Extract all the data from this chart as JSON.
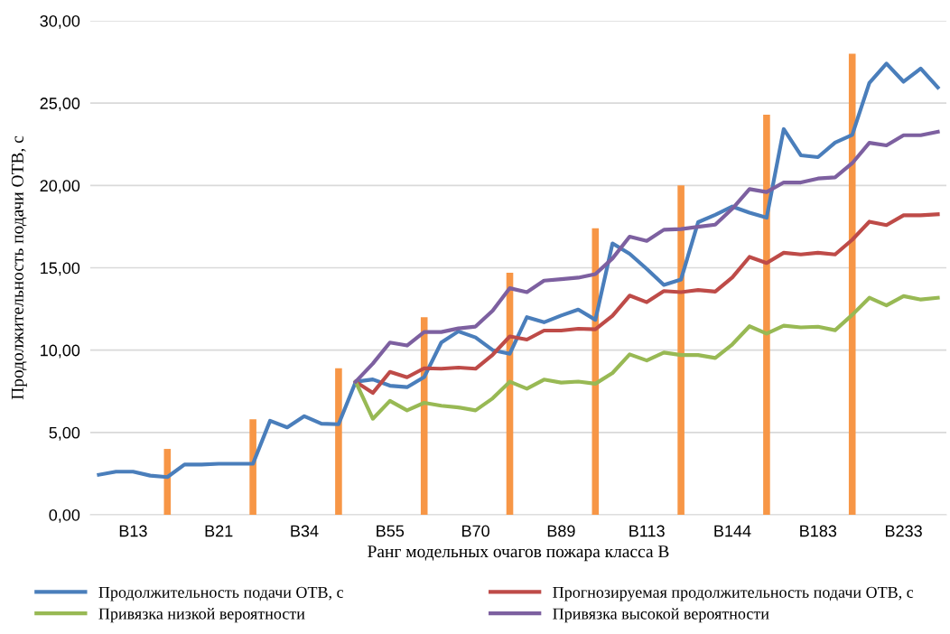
{
  "chart_data": {
    "type": "line",
    "xlabel": "Ранг модельных очагов пожара класса В",
    "ylabel": "Продолжительность подачи ОТВ, с",
    "categories": [
      null,
      null,
      "В13",
      null,
      null,
      null,
      null,
      "В21",
      null,
      null,
      null,
      null,
      "В34",
      null,
      null,
      null,
      null,
      "В55",
      null,
      null,
      null,
      null,
      "В70",
      null,
      null,
      null,
      null,
      "В89",
      null,
      null,
      null,
      null,
      "В113",
      null,
      null,
      null,
      null,
      "В144",
      null,
      null,
      null,
      null,
      "В183",
      null,
      null,
      null,
      null,
      "В233",
      null,
      null
    ],
    "series": [
      {
        "type": "bar",
        "color": "#f79646",
        "values": [
          null,
          null,
          null,
          null,
          4.0,
          null,
          null,
          null,
          null,
          5.8,
          null,
          null,
          null,
          null,
          8.9,
          null,
          null,
          null,
          null,
          12.0,
          null,
          null,
          null,
          null,
          14.7,
          null,
          null,
          null,
          null,
          17.4,
          null,
          null,
          null,
          null,
          20.0,
          null,
          null,
          null,
          null,
          24.3,
          null,
          null,
          null,
          null,
          28.0,
          null,
          null,
          null,
          null,
          null
        ]
      },
      {
        "name": "Продолжительность подачи ОТВ, с",
        "color": "#4a7ebb",
        "values": [
          2.43,
          2.62,
          2.62,
          2.38,
          2.29,
          3.05,
          3.05,
          3.1,
          3.1,
          3.1,
          5.71,
          5.31,
          5.99,
          5.53,
          5.5,
          8.08,
          8.22,
          7.84,
          7.75,
          8.36,
          10.46,
          11.14,
          10.77,
          10.0,
          9.78,
          12.0,
          11.69,
          12.1,
          12.46,
          11.84,
          16.48,
          15.85,
          14.93,
          13.96,
          14.29,
          17.77,
          18.22,
          18.72,
          18.35,
          18.04,
          23.42,
          21.83,
          21.72,
          22.6,
          23.07,
          26.22,
          27.4,
          26.3,
          27.1,
          25.95
        ]
      },
      {
        "name": "Прогнозируемая продолжительность подачи ОТВ, с",
        "color": "#be4b48",
        "values": [
          null,
          null,
          null,
          null,
          null,
          null,
          null,
          null,
          null,
          null,
          null,
          null,
          null,
          null,
          null,
          8.08,
          7.4,
          8.68,
          8.35,
          8.9,
          8.87,
          8.94,
          8.87,
          9.72,
          10.83,
          10.64,
          11.19,
          11.19,
          11.3,
          11.26,
          12.09,
          13.31,
          12.91,
          13.59,
          13.52,
          13.65,
          13.55,
          14.42,
          15.66,
          15.29,
          15.91,
          15.81,
          15.91,
          15.81,
          16.7,
          17.8,
          17.59,
          18.19,
          18.19,
          18.25
        ]
      },
      {
        "name": "Привязка низкой вероятности",
        "color": "#98b954",
        "values": [
          null,
          null,
          null,
          null,
          null,
          null,
          null,
          null,
          null,
          null,
          null,
          null,
          null,
          null,
          null,
          8.08,
          5.83,
          6.92,
          6.34,
          6.8,
          6.62,
          6.52,
          6.34,
          7.07,
          8.08,
          7.66,
          8.21,
          8.03,
          8.09,
          7.96,
          8.61,
          9.74,
          9.37,
          9.85,
          9.7,
          9.7,
          9.52,
          10.35,
          11.45,
          11.0,
          11.48,
          11.38,
          11.42,
          11.21,
          12.14,
          13.18,
          12.72,
          13.28,
          13.07,
          13.18
        ]
      },
      {
        "name": "Привязка высокой вероятности",
        "color": "#7d60a0",
        "values": [
          null,
          null,
          null,
          null,
          null,
          null,
          null,
          null,
          null,
          null,
          null,
          null,
          null,
          null,
          null,
          8.08,
          9.18,
          10.46,
          10.28,
          11.1,
          11.1,
          11.32,
          11.43,
          12.39,
          13.76,
          13.52,
          14.22,
          14.31,
          14.4,
          14.62,
          15.57,
          16.89,
          16.63,
          17.31,
          17.35,
          17.49,
          17.62,
          18.59,
          19.78,
          19.6,
          20.18,
          20.18,
          20.42,
          20.49,
          21.35,
          22.59,
          22.43,
          23.05,
          23.05,
          23.26
        ]
      }
    ],
    "ylim": [
      0,
      30
    ],
    "yticks": [
      {
        "value": 0,
        "label": "0,00"
      },
      {
        "value": 5,
        "label": "5,00"
      },
      {
        "value": 10,
        "label": "10,00"
      },
      {
        "value": 15,
        "label": "15,00"
      },
      {
        "value": 20,
        "label": "20,00"
      },
      {
        "value": 25,
        "label": "25,00"
      },
      {
        "value": 30,
        "label": "30,00"
      }
    ],
    "grid": "y",
    "legend": "bottom",
    "marker": "none",
    "line_style": "solid"
  }
}
